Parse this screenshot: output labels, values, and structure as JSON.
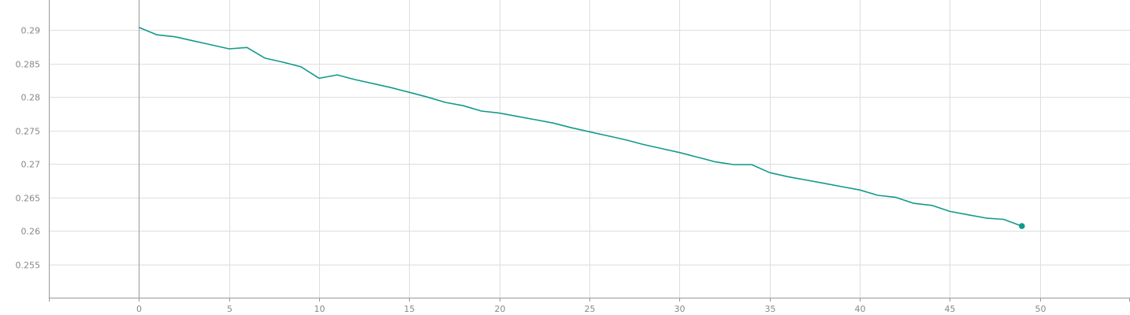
{
  "chart_data": {
    "type": "line",
    "title": "",
    "xlabel": "",
    "ylabel": "",
    "xlim": [
      -5,
      55
    ],
    "ylim": [
      0.25,
      0.2945
    ],
    "grid": true,
    "x_ticks": [
      {
        "value": 0,
        "label": "0"
      },
      {
        "value": 5,
        "label": "5"
      },
      {
        "value": 10,
        "label": "10"
      },
      {
        "value": 15,
        "label": "15"
      },
      {
        "value": 20,
        "label": "20"
      },
      {
        "value": 25,
        "label": "25"
      },
      {
        "value": 30,
        "label": "30"
      },
      {
        "value": 35,
        "label": "35"
      },
      {
        "value": 40,
        "label": "40"
      },
      {
        "value": 45,
        "label": "45"
      },
      {
        "value": 50,
        "label": "50"
      }
    ],
    "y_ticks": [
      {
        "value": 0.255,
        "label": "0.255"
      },
      {
        "value": 0.26,
        "label": "0.26"
      },
      {
        "value": 0.265,
        "label": "0.265"
      },
      {
        "value": 0.27,
        "label": "0.27"
      },
      {
        "value": 0.275,
        "label": "0.275"
      },
      {
        "value": 0.28,
        "label": "0.28"
      },
      {
        "value": 0.285,
        "label": "0.285"
      },
      {
        "value": 0.29,
        "label": "0.29"
      }
    ],
    "series": [
      {
        "color": "#129a8a",
        "x": [
          0,
          1,
          2,
          3,
          4,
          5,
          6,
          7,
          8,
          9,
          10,
          11,
          12,
          13,
          14,
          15,
          16,
          17,
          18,
          19,
          20,
          21,
          22,
          23,
          24,
          25,
          26,
          27,
          28,
          29,
          30,
          31,
          32,
          33,
          34,
          35,
          36,
          37,
          38,
          39,
          40,
          41,
          42,
          43,
          44,
          45,
          46,
          47,
          48,
          49
        ],
        "y": [
          0.2904,
          0.2893,
          0.289,
          0.2884,
          0.2878,
          0.2872,
          0.2874,
          0.2858,
          0.2852,
          0.2845,
          0.2828,
          0.2833,
          0.2826,
          0.282,
          0.2814,
          0.2807,
          0.28,
          0.2792,
          0.2787,
          0.2779,
          0.2776,
          0.2771,
          0.2766,
          0.2761,
          0.2754,
          0.2748,
          0.2742,
          0.2736,
          0.2729,
          0.2723,
          0.2717,
          0.271,
          0.2703,
          0.2699,
          0.2699,
          0.2687,
          0.2681,
          0.2676,
          0.2671,
          0.2666,
          0.2661,
          0.2653,
          0.265,
          0.2641,
          0.2638,
          0.2629,
          0.2624,
          0.2619,
          0.2617,
          0.2607
        ]
      }
    ]
  },
  "colors": {
    "line": "#129a8a",
    "grid": "#dedede",
    "axis": "#999999",
    "zero_line": "#999999",
    "label": "#888888"
  }
}
